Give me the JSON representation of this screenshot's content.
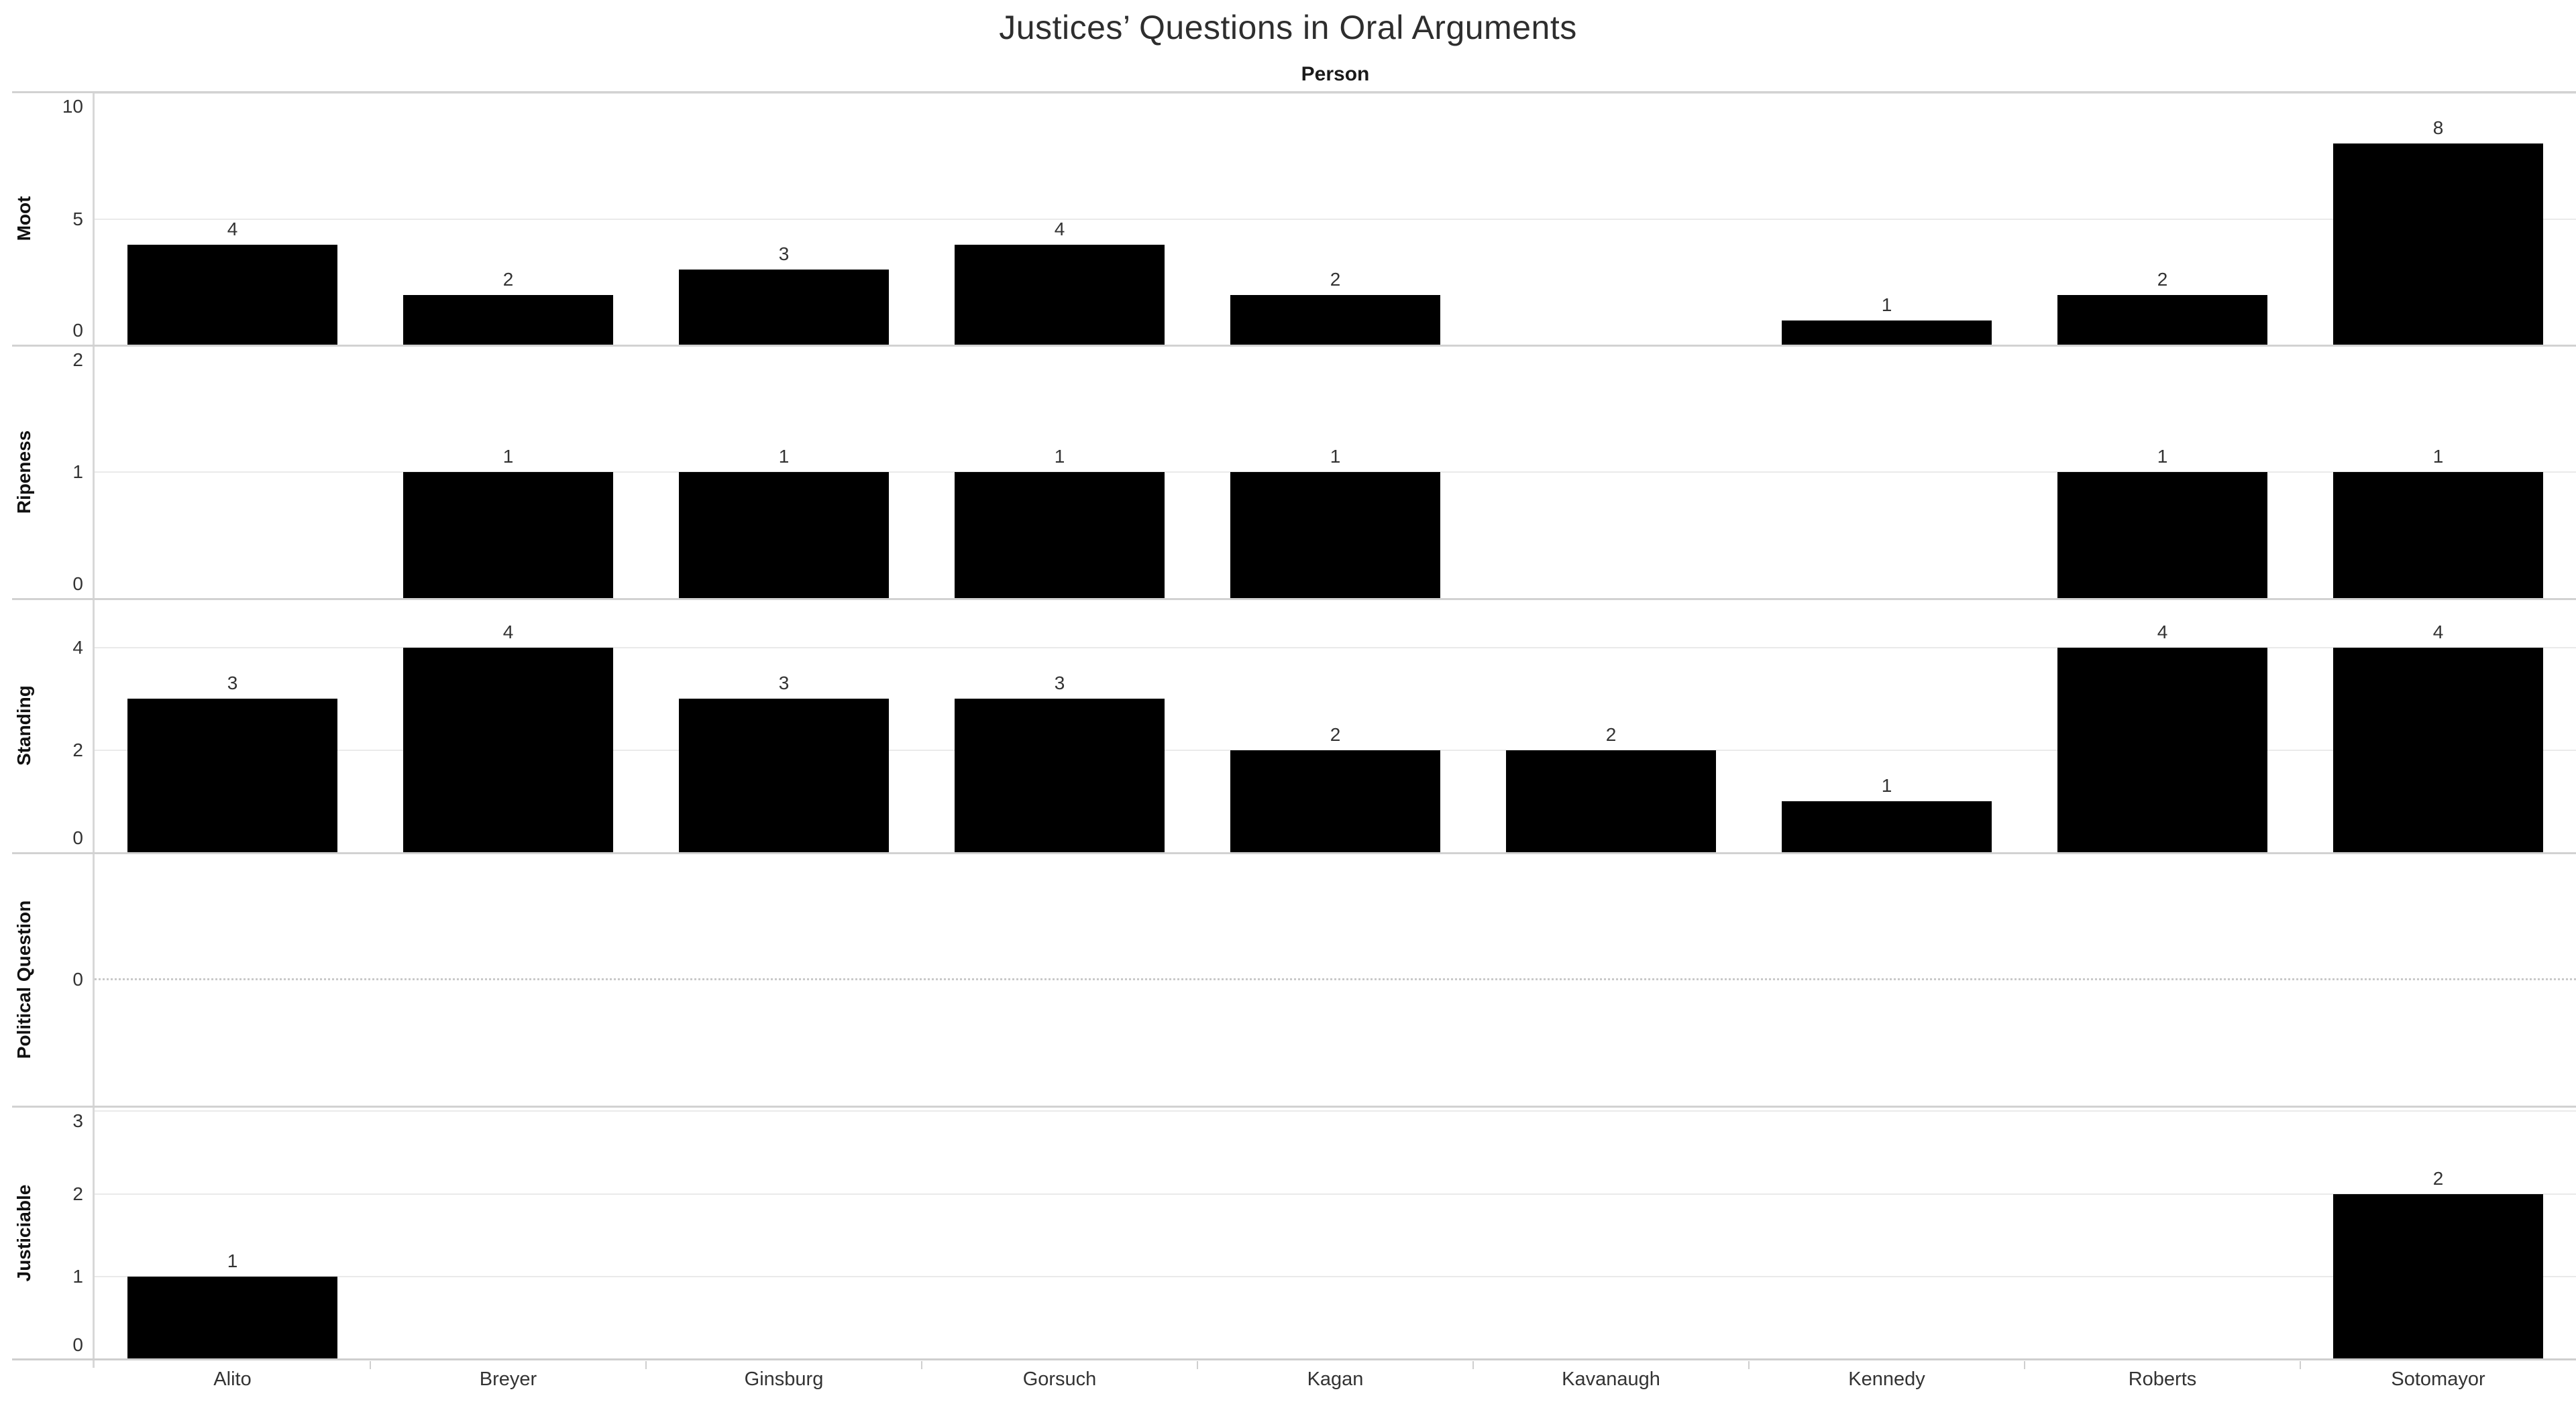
{
  "page": {
    "background": "#ffffff"
  },
  "chart_data": {
    "type": "bar",
    "title": "Justices’ Questions in Oral Arguments",
    "column_header": "Person",
    "categories": [
      "Alito",
      "Breyer",
      "Ginsburg",
      "Gorsuch",
      "Kagan",
      "Kavanaugh",
      "Kennedy",
      "Roberts",
      "Sotomayor"
    ],
    "rows": [
      {
        "label": "Moot",
        "ticks": [
          0,
          5,
          10
        ],
        "axis_min": 0,
        "axis_max": 10.05,
        "values": [
          4,
          2,
          3,
          4,
          2,
          0,
          1,
          2,
          8
        ]
      },
      {
        "label": "Ripeness",
        "ticks": [
          0,
          1,
          2
        ],
        "axis_min": 0,
        "axis_max": 2,
        "values": [
          0,
          1,
          1,
          1,
          1,
          0,
          0,
          1,
          1
        ]
      },
      {
        "label": "Standing",
        "ticks": [
          0,
          2,
          4
        ],
        "axis_min": 0,
        "axis_max": 4.95,
        "values": [
          3,
          4,
          3,
          3,
          2,
          2,
          1,
          4,
          4
        ]
      },
      {
        "label": "Political Question",
        "ticks": [
          0
        ],
        "axis_min": -1,
        "axis_max": 1,
        "values": [
          0,
          0,
          0,
          0,
          0,
          0,
          0,
          0,
          0
        ],
        "zero_line": "dotted"
      },
      {
        "label": "Justiciable",
        "ticks": [
          0,
          1,
          2,
          3
        ],
        "axis_min": 0,
        "axis_max": 3.06,
        "values": [
          1,
          0,
          0,
          0,
          0,
          0,
          0,
          0,
          2
        ]
      }
    ],
    "bar_color": "#000000",
    "colors": {
      "title_text": "#2e2e2e",
      "tick_text": "#333333",
      "grid": "#eaeaea",
      "axis_line": "#d8d8d8",
      "divider": "#d2d2d2"
    },
    "grid": true,
    "legend": "none"
  }
}
